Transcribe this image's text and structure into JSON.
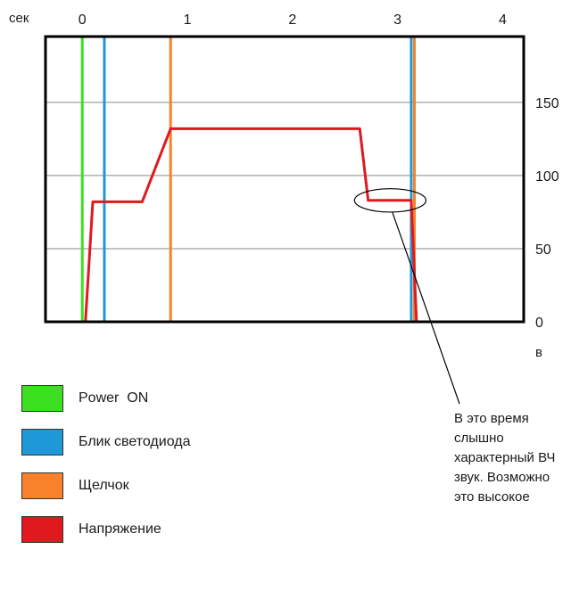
{
  "chart_data": {
    "type": "line",
    "x_unit_label": "сек",
    "y_unit_label": "в",
    "x_axis_position": "top",
    "y_axis_position": "right",
    "xlim": [
      -0.35,
      4.2
    ],
    "ylim": [
      0,
      195
    ],
    "x_ticks": [
      0,
      1,
      2,
      3,
      4
    ],
    "y_ticks": [
      0,
      50,
      100,
      150
    ],
    "grid": "horizontal",
    "legend_position": "bottom-left",
    "series": [
      {
        "name": "Power  ON",
        "kind": "vline",
        "color": "#3be01e",
        "x": 0.0
      },
      {
        "name": "Блик светодиода",
        "kind": "vline",
        "color": "#1e98d6",
        "x": [
          0.21,
          3.13
        ]
      },
      {
        "name": "Щелчок",
        "kind": "vline",
        "color": "#f7822b",
        "x": [
          0.84,
          3.16
        ]
      },
      {
        "name": "Напряжение",
        "kind": "line",
        "color": "#e0191f",
        "points": [
          [
            0.03,
            0
          ],
          [
            0.1,
            82
          ],
          [
            0.57,
            82
          ],
          [
            0.84,
            132
          ],
          [
            2.64,
            132
          ],
          [
            2.72,
            83
          ],
          [
            3.13,
            83
          ],
          [
            3.18,
            0
          ]
        ]
      }
    ],
    "annotations": [
      {
        "type": "ellipse",
        "x": 2.93,
        "y": 83,
        "rx": 0.34,
        "ry": 8
      },
      {
        "type": "pointer",
        "from": [
          2.95,
          75
        ],
        "text_ref": "note"
      }
    ]
  },
  "legend": [
    {
      "label": "Power  ON",
      "color": "#3be01e"
    },
    {
      "label": "Блик светодиода",
      "color": "#1e98d6"
    },
    {
      "label": "Щелчок",
      "color": "#f7822b"
    },
    {
      "label": "Напряжение",
      "color": "#e0191f"
    }
  ],
  "note": {
    "lines": [
      "В это время",
      "слышно",
      "характерный ВЧ",
      "звук. Возможно",
      "это высокое"
    ]
  }
}
